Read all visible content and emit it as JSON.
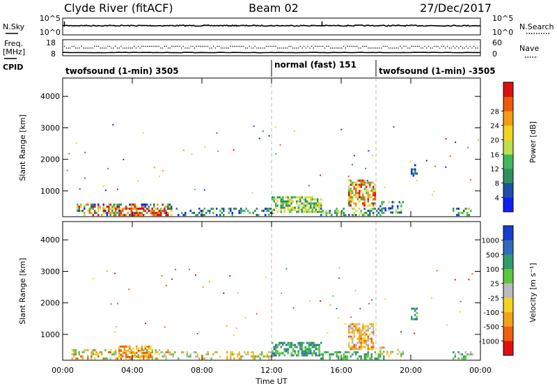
{
  "header": {
    "station": "Clyde River (fitACF)",
    "beam": "Beam 02",
    "date": "27/Dec/2017"
  },
  "side_labels": {
    "nsky": "N.Sky",
    "freq_line1": "Freq.",
    "freq_line2": "[MHz]",
    "cpid": "CPID",
    "nsearch": "N.Search",
    "nave": "Nave"
  },
  "chart_data": [
    {
      "type": "line",
      "panel": "noise",
      "left_ticks": [
        "10^5",
        "10^0"
      ],
      "right_ticks": [
        "10^5",
        "10^0"
      ],
      "series": [
        {
          "name": "N.Sky",
          "style": "solid",
          "level": 0.55,
          "spike_x_hours": [
            0.1,
            14.9
          ]
        },
        {
          "name": "N.Search",
          "style": "dotted",
          "level": 0.55
        }
      ]
    },
    {
      "type": "line",
      "panel": "frequency",
      "left_ticks": [
        "18",
        "8"
      ],
      "right_ticks": [
        "60",
        "0"
      ],
      "series": [
        {
          "name": "Freq.",
          "style": "solid",
          "level": 0.2
        },
        {
          "name": "Nave",
          "style": "dotted",
          "level": 0.55
        }
      ]
    },
    {
      "type": "table",
      "panel": "cpid",
      "segments": [
        {
          "label": "twofsound (1-min) 3505",
          "start_hour": 0,
          "end_hour": 12
        },
        {
          "label": "normal (fast) 151",
          "start_hour": 12,
          "end_hour": 18
        },
        {
          "label": "twofsound (1-min) -3505",
          "start_hour": 18,
          "end_hour": 24
        }
      ]
    },
    {
      "type": "heatmap",
      "panel": "power",
      "ylabel": "Slant Range [km]",
      "yticks": [
        "1000",
        "2000",
        "3000",
        "4000"
      ],
      "ylim": [
        180,
        4580
      ],
      "colorbar_label": "Power [dB]",
      "colorbar_ticks": [
        "4",
        "8",
        "12",
        "16",
        "20",
        "24",
        "28"
      ],
      "colorbar_colors": [
        "#0f1fff",
        "#1e4fa8",
        "#2f8f5f",
        "#3fb85a",
        "#bde14b",
        "#f5d21f",
        "#f39c12",
        "#ee5a0b",
        "#dd1010"
      ],
      "dashed_x_hours": [
        12,
        18
      ],
      "echo_regions": [
        {
          "x0": 0.8,
          "x1": 6.2,
          "r0": 200,
          "r1": 560,
          "density": 0.55,
          "vmin": 0,
          "vmax": 8
        },
        {
          "x0": 3.2,
          "x1": 6.0,
          "r0": 200,
          "r1": 420,
          "density": 0.6,
          "vmin": 6,
          "vmax": 9
        },
        {
          "x0": 6.5,
          "x1": 12.0,
          "r0": 200,
          "r1": 400,
          "density": 0.35,
          "vmin": 0,
          "vmax": 3
        },
        {
          "x0": 12.0,
          "x1": 14.8,
          "r0": 300,
          "r1": 780,
          "density": 0.6,
          "vmin": 2,
          "vmax": 5
        },
        {
          "x0": 14.8,
          "x1": 18.5,
          "r0": 200,
          "r1": 450,
          "density": 0.5,
          "vmin": 1,
          "vmax": 4
        },
        {
          "x0": 16.4,
          "x1": 17.4,
          "r0": 500,
          "r1": 1320,
          "density": 0.6,
          "vmin": 3,
          "vmax": 8
        },
        {
          "x0": 17.4,
          "x1": 18.0,
          "r0": 500,
          "r1": 1280,
          "density": 0.5,
          "vmin": 3,
          "vmax": 8
        },
        {
          "x0": 18.2,
          "x1": 19.6,
          "r0": 280,
          "r1": 640,
          "density": 0.35,
          "vmin": 0,
          "vmax": 4
        },
        {
          "x0": 20.0,
          "x1": 20.4,
          "r0": 1450,
          "r1": 1800,
          "density": 0.4,
          "vmin": 0,
          "vmax": 3
        },
        {
          "x0": 22.4,
          "x1": 23.5,
          "r0": 200,
          "r1": 420,
          "density": 0.45,
          "vmin": 0,
          "vmax": 5
        }
      ]
    },
    {
      "type": "heatmap",
      "panel": "velocity",
      "ylabel": "Slant Range [km]",
      "yticks": [
        "1000",
        "2000",
        "3000",
        "4000"
      ],
      "ylim": [
        180,
        4580
      ],
      "xlabel": "Time UT",
      "xticks": [
        "00:00",
        "04:00",
        "08:00",
        "12:00",
        "16:00",
        "20:00",
        "00:00"
      ],
      "colorbar_label": "Velocity [m s⁻¹]",
      "colorbar_ticks": [
        "1000",
        "500",
        "100",
        "25",
        "-25",
        "-100",
        "-500",
        "-1000"
      ],
      "colorbar_colors": [
        "#1a3fcf",
        "#2f6cc0",
        "#2f9a6a",
        "#5cc640",
        "#bbbbbb",
        "#f7d21f",
        "#f5a21a",
        "#ee6010",
        "#e01010"
      ],
      "dashed_x_hours": [
        12,
        18
      ],
      "echo_regions": [
        {
          "x0": 0.5,
          "x1": 6.0,
          "r0": 200,
          "r1": 520,
          "density": 0.45,
          "vmin": 3,
          "vmax": 7
        },
        {
          "x0": 3.2,
          "x1": 5.0,
          "r0": 250,
          "r1": 600,
          "density": 0.5,
          "vmin": 5,
          "vmax": 7
        },
        {
          "x0": 6.0,
          "x1": 12.0,
          "r0": 200,
          "r1": 400,
          "density": 0.3,
          "vmin": 3,
          "vmax": 6
        },
        {
          "x0": 12.0,
          "x1": 14.8,
          "r0": 300,
          "r1": 760,
          "density": 0.6,
          "vmin": 1,
          "vmax": 3
        },
        {
          "x0": 14.8,
          "x1": 18.5,
          "r0": 200,
          "r1": 420,
          "density": 0.45,
          "vmin": 2,
          "vmax": 3
        },
        {
          "x0": 16.4,
          "x1": 17.9,
          "r0": 500,
          "r1": 1320,
          "density": 0.6,
          "vmin": 4,
          "vmax": 7
        },
        {
          "x0": 18.2,
          "x1": 19.6,
          "r0": 280,
          "r1": 600,
          "density": 0.3,
          "vmin": 3,
          "vmax": 6
        },
        {
          "x0": 20.0,
          "x1": 20.4,
          "r0": 1450,
          "r1": 1800,
          "density": 0.4,
          "vmin": 1,
          "vmax": 3
        },
        {
          "x0": 22.4,
          "x1": 23.6,
          "r0": 200,
          "r1": 440,
          "density": 0.45,
          "vmin": 2,
          "vmax": 4
        }
      ]
    }
  ]
}
